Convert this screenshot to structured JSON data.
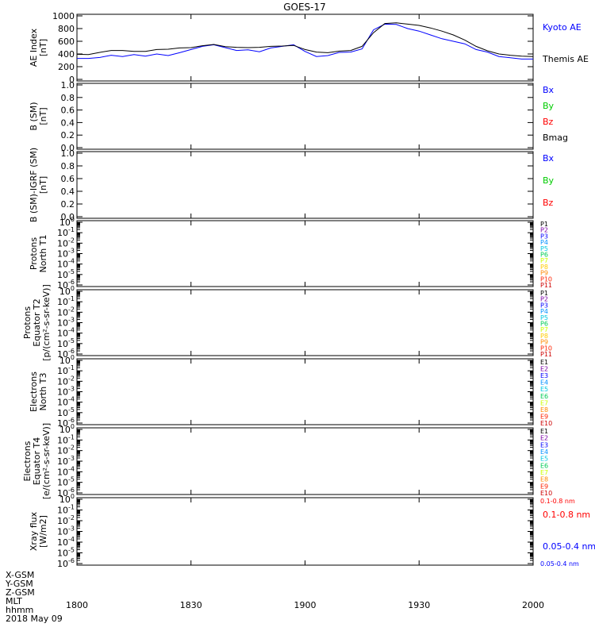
{
  "title": "GOES-17",
  "time_axis": {
    "ticks": [
      "1800",
      "1830",
      "1900",
      "1930",
      "2000"
    ],
    "tick_minutes": [
      0,
      30,
      60,
      90,
      120
    ]
  },
  "footer": {
    "row_labels": [
      "X-GSM",
      "Y-GSM",
      "Z-GSM",
      "MLT",
      "hhmm"
    ],
    "date": "2018 May 09"
  },
  "colors": {
    "blue": "#0000ff",
    "green": "#00cc00",
    "red": "#ff0000",
    "black": "#000000"
  },
  "panels": [
    {
      "id": "ae",
      "ylabel_lines": [
        "AE Index",
        "[nT]"
      ],
      "scale": "linear",
      "yticks": [
        "0",
        "200",
        "400",
        "600",
        "800",
        "1000"
      ],
      "legend": [
        {
          "text": "Kyoto AE",
          "color": "#0000ff"
        },
        {
          "text": "Themis AE",
          "color": "#000000"
        }
      ]
    },
    {
      "id": "b-sm",
      "ylabel_lines": [
        "B (SM)",
        "[nT]"
      ],
      "scale": "linear",
      "yticks": [
        "0.0",
        "0.2",
        "0.4",
        "0.6",
        "0.8",
        "1.0"
      ],
      "legend": [
        {
          "text": "Bx",
          "color": "#0000ff"
        },
        {
          "text": "By",
          "color": "#00cc00"
        },
        {
          "text": "Bz",
          "color": "#ff0000"
        },
        {
          "text": "Bmag",
          "color": "#000000"
        }
      ]
    },
    {
      "id": "b-igrf",
      "ylabel_lines": [
        "B (SM)-IGRF (SM)",
        "[nT]"
      ],
      "scale": "linear",
      "yticks": [
        "0.0",
        "0.2",
        "0.4",
        "0.6",
        "0.8",
        "1.0"
      ],
      "legend": [
        {
          "text": "Bx",
          "color": "#0000ff"
        },
        {
          "text": "By",
          "color": "#00cc00"
        },
        {
          "text": "Bz",
          "color": "#ff0000"
        }
      ]
    },
    {
      "id": "protons-t1",
      "ylabel_lines": [
        "Protons",
        "North T1"
      ],
      "scale": "log",
      "yticks": [
        "10^0",
        "10^-1",
        "10^-2",
        "10^-3",
        "10^-4",
        "10^-5",
        "10^-6"
      ],
      "legend": [
        {
          "text": "P1",
          "color": "#000000"
        },
        {
          "text": "P2",
          "color": "#7b00a8"
        },
        {
          "text": "P3",
          "color": "#0000ff"
        },
        {
          "text": "P4",
          "color": "#0090ff"
        },
        {
          "text": "P5",
          "color": "#00c8e0"
        },
        {
          "text": "P6",
          "color": "#00cc55"
        },
        {
          "text": "P7",
          "color": "#ccff00"
        },
        {
          "text": "P8",
          "color": "#ffcc00"
        },
        {
          "text": "P9",
          "color": "#ff8800"
        },
        {
          "text": "P10",
          "color": "#ff2200"
        },
        {
          "text": "P11",
          "color": "#cc0000"
        }
      ]
    },
    {
      "id": "protons-t2",
      "ylabel_lines": [
        "Protons",
        "Equator T2",
        "[p/(cm²-s-sr-keV)]"
      ],
      "scale": "log",
      "yticks": [
        "10^0",
        "10^-1",
        "10^-2",
        "10^-3",
        "10^-4",
        "10^-5",
        "10^-6"
      ],
      "legend": [
        {
          "text": "P1",
          "color": "#000000"
        },
        {
          "text": "P2",
          "color": "#7b00a8"
        },
        {
          "text": "P3",
          "color": "#0000ff"
        },
        {
          "text": "P4",
          "color": "#0090ff"
        },
        {
          "text": "P5",
          "color": "#00c8e0"
        },
        {
          "text": "P6",
          "color": "#00cc55"
        },
        {
          "text": "P7",
          "color": "#ccff00"
        },
        {
          "text": "P8",
          "color": "#ffcc00"
        },
        {
          "text": "P9",
          "color": "#ff8800"
        },
        {
          "text": "P10",
          "color": "#ff2200"
        },
        {
          "text": "P11",
          "color": "#cc0000"
        }
      ]
    },
    {
      "id": "electrons-t3",
      "ylabel_lines": [
        "Electrons",
        "North T3"
      ],
      "scale": "log",
      "yticks": [
        "10^0",
        "10^-1",
        "10^-2",
        "10^-3",
        "10^-4",
        "10^-5",
        "10^-6"
      ],
      "legend": [
        {
          "text": "E1",
          "color": "#000000"
        },
        {
          "text": "E2",
          "color": "#7b00a8"
        },
        {
          "text": "E3",
          "color": "#0000ff"
        },
        {
          "text": "E4",
          "color": "#0090ff"
        },
        {
          "text": "E5",
          "color": "#00c8e0"
        },
        {
          "text": "E6",
          "color": "#00cc55"
        },
        {
          "text": "E7",
          "color": "#ccff00"
        },
        {
          "text": "E8",
          "color": "#ff8800"
        },
        {
          "text": "E9",
          "color": "#ff2200"
        },
        {
          "text": "E10",
          "color": "#cc0000"
        }
      ]
    },
    {
      "id": "electrons-t4",
      "ylabel_lines": [
        "Electrons",
        "Equator T4",
        "[e/(cm²-s-sr-keV)]"
      ],
      "scale": "log",
      "yticks": [
        "10^0",
        "10^-1",
        "10^-2",
        "10^-3",
        "10^-4",
        "10^-5",
        "10^-6"
      ],
      "legend": [
        {
          "text": "E1",
          "color": "#000000"
        },
        {
          "text": "E2",
          "color": "#7b00a8"
        },
        {
          "text": "E3",
          "color": "#0000ff"
        },
        {
          "text": "E4",
          "color": "#0090ff"
        },
        {
          "text": "E5",
          "color": "#00c8e0"
        },
        {
          "text": "E6",
          "color": "#00cc55"
        },
        {
          "text": "E7",
          "color": "#ccff00"
        },
        {
          "text": "E8",
          "color": "#ff8800"
        },
        {
          "text": "E9",
          "color": "#ff2200"
        },
        {
          "text": "E10",
          "color": "#cc0000"
        }
      ]
    },
    {
      "id": "xray",
      "ylabel_lines": [
        "Xray flux",
        "[W/m2]"
      ],
      "scale": "log",
      "yticks": [
        "10^0",
        "10^-1",
        "10^-2",
        "10^-3",
        "10^-4",
        "10^-5",
        "10^-6"
      ],
      "legend": [
        {
          "text": "0.1-0.8 nm",
          "color": "#ff0000"
        },
        {
          "text": "0.05-0.4 nm",
          "color": "#0000ff"
        }
      ]
    }
  ],
  "chart_data": {
    "type": "line",
    "title": "GOES-17",
    "x_unit": "minutes after 1800 UT",
    "xlim": [
      0,
      120
    ],
    "x": [
      0,
      3,
      6,
      9,
      12,
      15,
      18,
      21,
      24,
      27,
      30,
      33,
      36,
      39,
      42,
      45,
      48,
      51,
      54,
      57,
      60,
      63,
      66,
      69,
      72,
      75,
      78,
      81,
      84,
      87,
      90,
      93,
      96,
      99,
      102,
      105,
      108,
      111,
      114,
      117,
      120
    ],
    "ylim": [
      0,
      1000
    ],
    "series": [
      {
        "name": "Kyoto AE",
        "color": "#0000ff",
        "values": [
          330,
          330,
          345,
          380,
          360,
          390,
          365,
          400,
          375,
          420,
          470,
          520,
          545,
          500,
          455,
          465,
          435,
          495,
          520,
          545,
          440,
          360,
          375,
          425,
          430,
          480,
          780,
          870,
          865,
          800,
          760,
          700,
          640,
          600,
          560,
          470,
          430,
          360,
          340,
          320,
          320
        ]
      },
      {
        "name": "Themis AE",
        "color": "#000000",
        "values": [
          395,
          390,
          425,
          455,
          455,
          440,
          440,
          470,
          475,
          495,
          500,
          530,
          550,
          515,
          505,
          500,
          505,
          520,
          525,
          535,
          470,
          430,
          420,
          445,
          455,
          520,
          735,
          880,
          890,
          870,
          850,
          810,
          760,
          700,
          620,
          520,
          450,
          400,
          380,
          365,
          360
        ]
      }
    ]
  }
}
